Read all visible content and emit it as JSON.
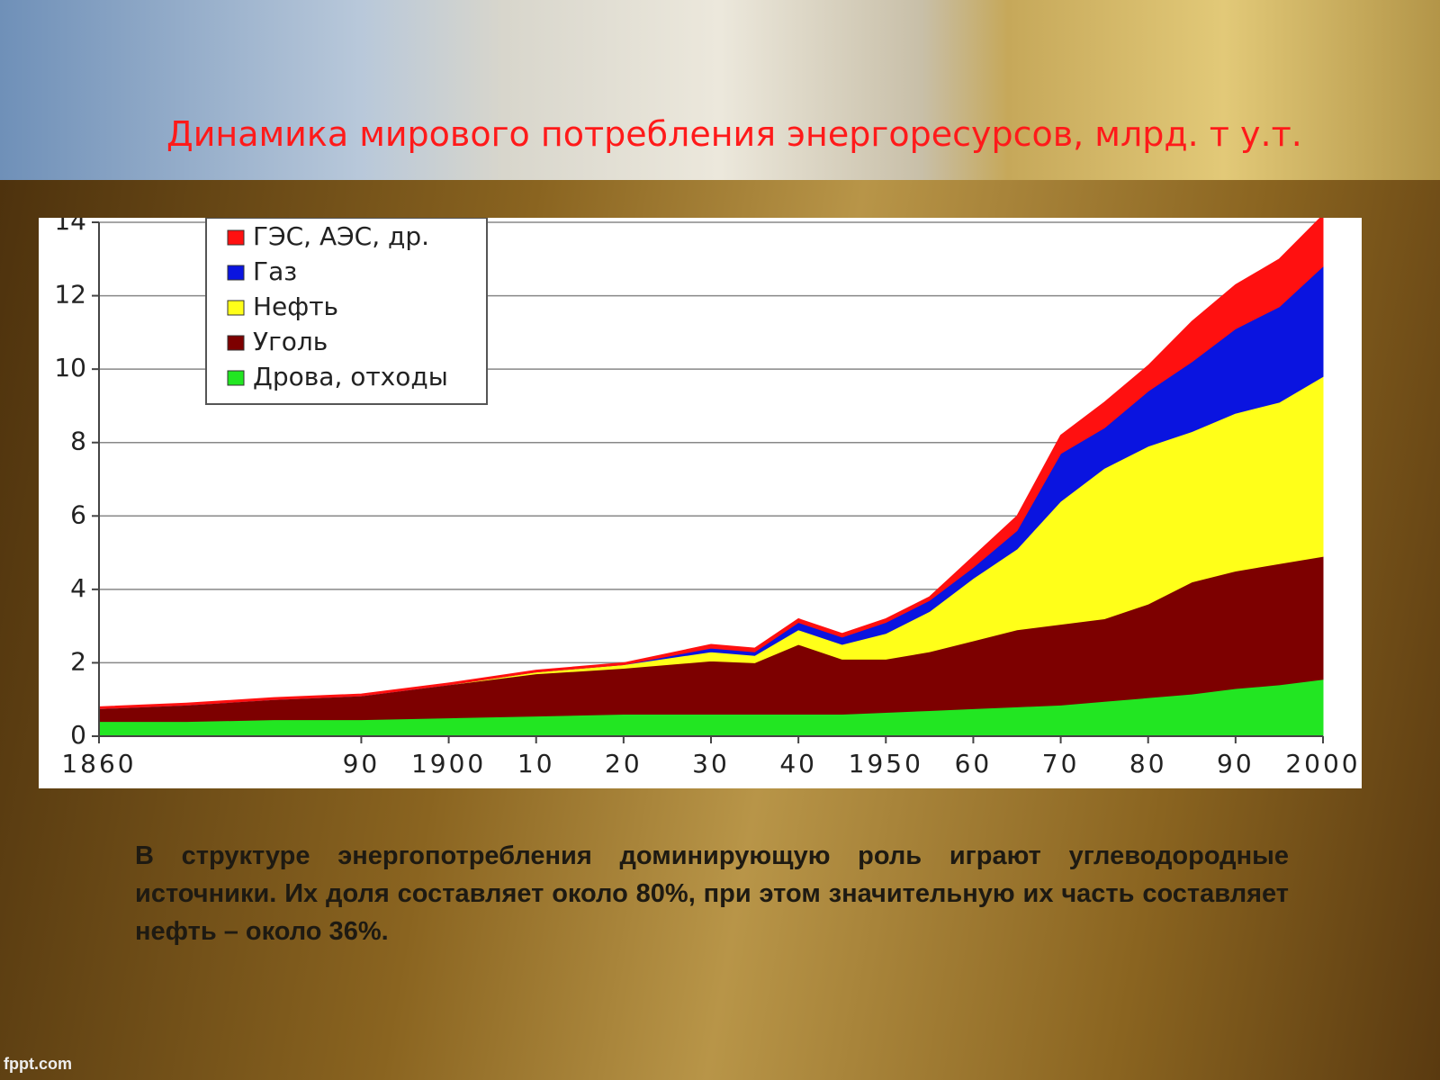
{
  "chart_data": {
    "type": "stacked-area",
    "title": "Динамика мирового потребления энергоресурсов,  млрд. т у.т.",
    "x": [
      1860,
      1870,
      1880,
      1890,
      1900,
      1910,
      1920,
      1930,
      1935,
      1940,
      1945,
      1950,
      1955,
      1960,
      1965,
      1970,
      1975,
      1980,
      1985,
      1990,
      1995,
      2000
    ],
    "series": [
      {
        "name": "ГЭС, АЭС, др.",
        "color": "#ff1010",
        "values": [
          0.05,
          0.05,
          0.05,
          0.05,
          0.05,
          0.05,
          0.05,
          0.1,
          0.1,
          0.1,
          0.1,
          0.1,
          0.1,
          0.3,
          0.4,
          0.5,
          0.7,
          0.7,
          1.1,
          1.2,
          1.3,
          1.4
        ]
      },
      {
        "name": "Газ",
        "color": "#0a14e0",
        "values": [
          0,
          0,
          0,
          0,
          0,
          0,
          0,
          0.1,
          0.1,
          0.2,
          0.2,
          0.3,
          0.3,
          0.3,
          0.5,
          1.3,
          1.1,
          1.5,
          1.9,
          2.3,
          2.6,
          3.0
        ]
      },
      {
        "name": "Нефть",
        "color": "#ffff19",
        "values": [
          0,
          0,
          0,
          0,
          0,
          0.05,
          0.1,
          0.25,
          0.2,
          0.4,
          0.4,
          0.7,
          1.1,
          1.7,
          2.2,
          3.35,
          4.1,
          4.3,
          4.1,
          4.3,
          4.4,
          4.9
        ]
      },
      {
        "name": "Уголь",
        "color": "#7d0000",
        "values": [
          0.35,
          0.45,
          0.55,
          0.65,
          0.9,
          1.15,
          1.25,
          1.45,
          1.4,
          1.9,
          1.5,
          1.45,
          1.6,
          1.85,
          2.1,
          2.2,
          2.25,
          2.55,
          3.05,
          3.2,
          3.3,
          3.35
        ]
      },
      {
        "name": "Дрова, отходы",
        "color": "#22e622",
        "values": [
          0.4,
          0.4,
          0.45,
          0.45,
          0.5,
          0.55,
          0.6,
          0.6,
          0.6,
          0.6,
          0.6,
          0.65,
          0.7,
          0.75,
          0.8,
          0.85,
          0.95,
          1.05,
          1.15,
          1.3,
          1.4,
          1.55
        ]
      }
    ],
    "xlim": [
      1860,
      2000
    ],
    "xticks": [
      1860,
      {
        "value": 1890,
        "label": "90"
      },
      1900,
      {
        "value": 1910,
        "label": "10"
      },
      {
        "value": 1920,
        "label": "20"
      },
      {
        "value": 1930,
        "label": "30"
      },
      {
        "value": 1940,
        "label": "40"
      },
      1950,
      {
        "value": 1960,
        "label": "60"
      },
      {
        "value": 1970,
        "label": "70"
      },
      {
        "value": 1980,
        "label": "80"
      },
      {
        "value": 1990,
        "label": "90"
      },
      2000
    ],
    "ylim": [
      0,
      14
    ],
    "yticks": [
      0,
      2,
      4,
      6,
      8,
      10,
      12,
      14
    ],
    "grid": true,
    "legend": "upper-left"
  },
  "body": "В структуре энергопотребления доминирующую роль играют углеводородные источники. Их доля составляет около 80%, при этом значительную их часть составляет нефть – около 36%.",
  "footer": "fppt.com"
}
